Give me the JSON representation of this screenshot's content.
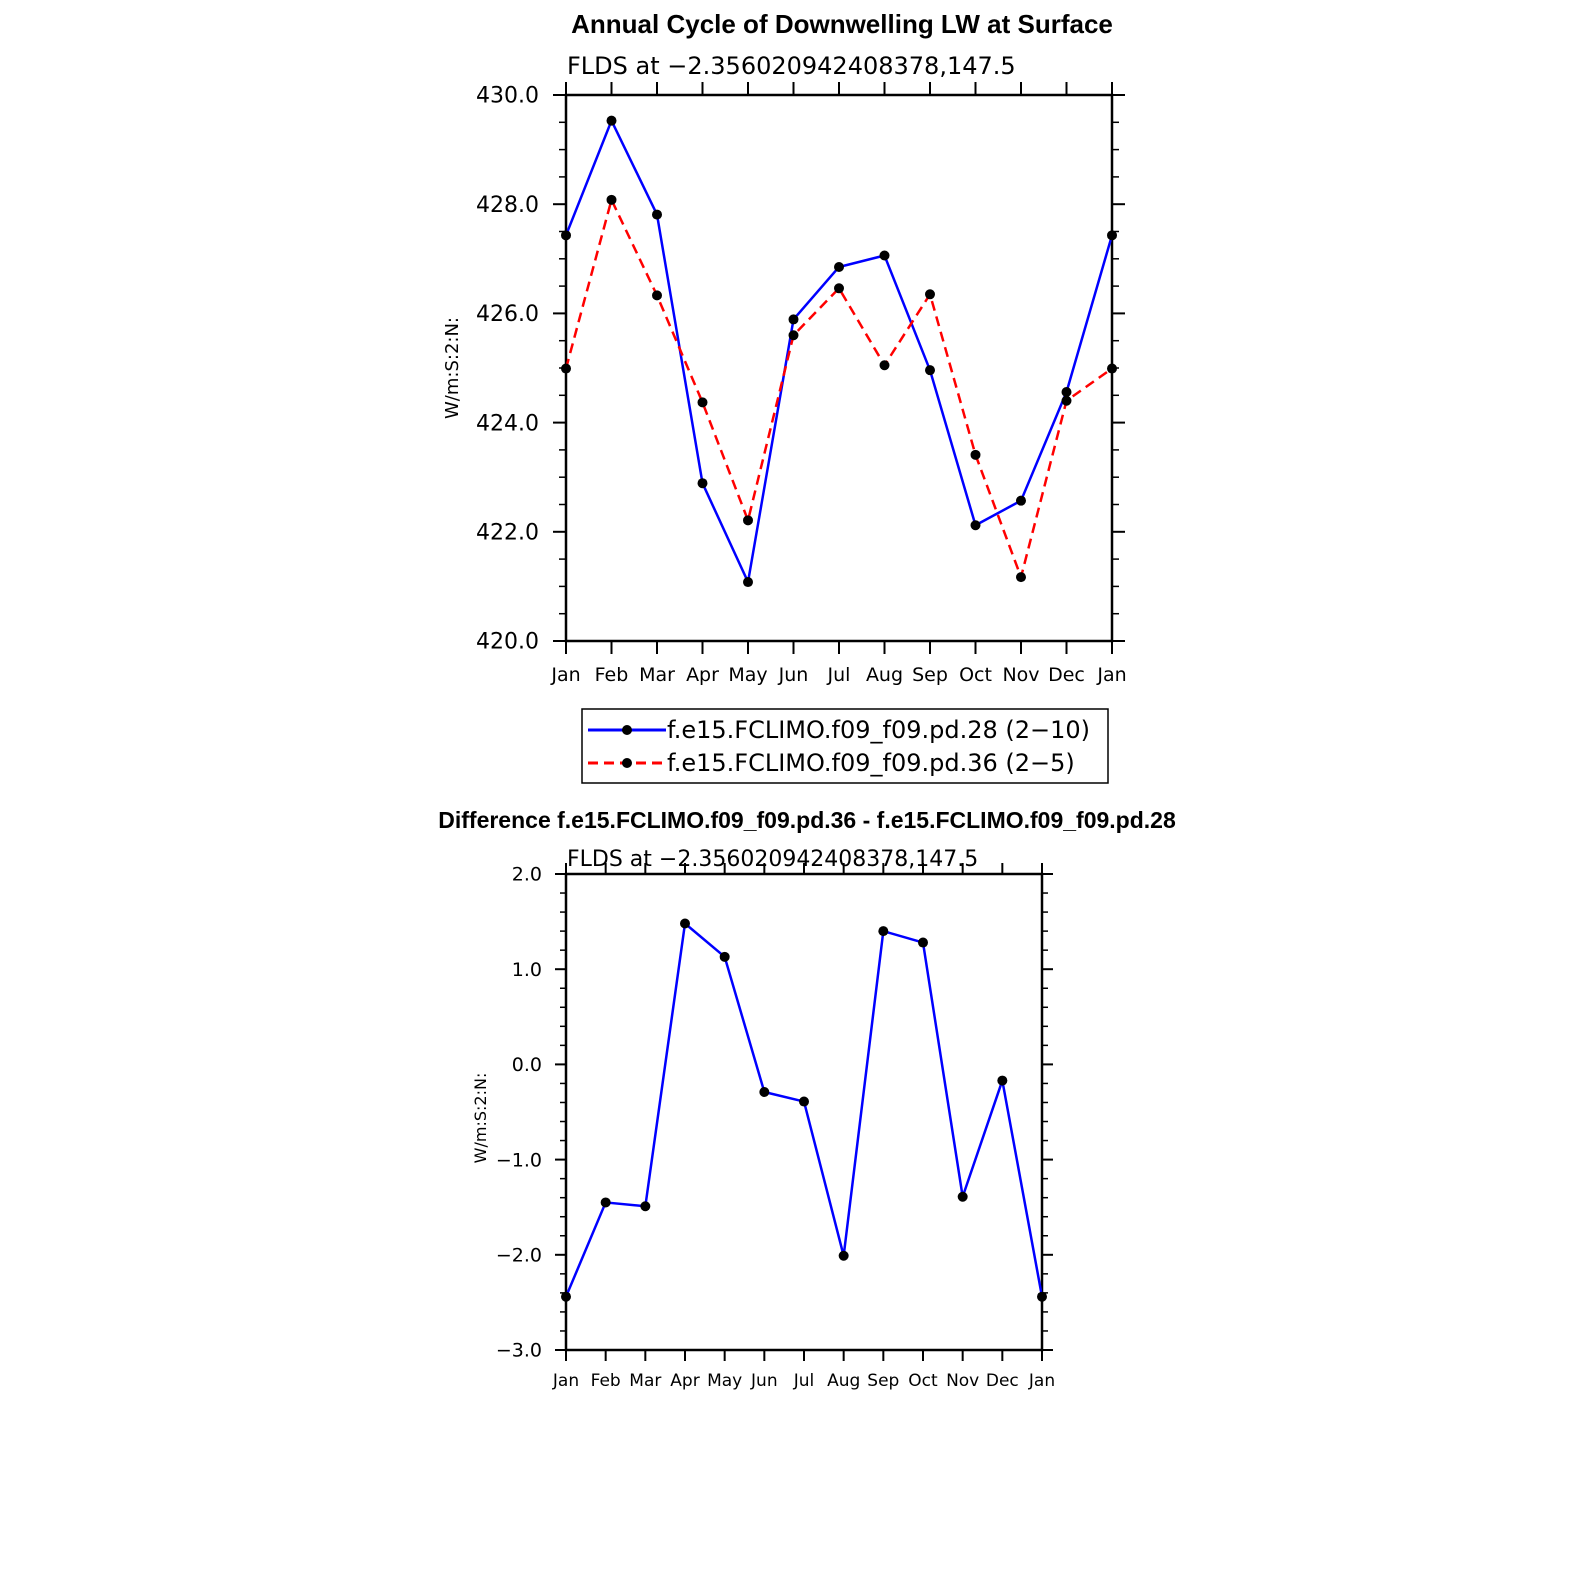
{
  "chart_data": [
    {
      "type": "line",
      "title": "Annual Cycle of Downwelling LW at Surface",
      "subtitle": "FLDS at −2.356020942408378,147.5",
      "ylabel": "W/m:S:2:N:",
      "ylim": [
        420,
        430
      ],
      "yticks": [
        "420.0",
        "422.0",
        "424.0",
        "426.0",
        "428.0",
        "430.0"
      ],
      "categories": [
        "Jan",
        "Feb",
        "Mar",
        "Apr",
        "May",
        "Jun",
        "Jul",
        "Aug",
        "Sep",
        "Oct",
        "Nov",
        "Dec",
        "Jan"
      ],
      "grid": false,
      "legend_position": "bottom",
      "series": [
        {
          "name": "f.e15.FCLIMO.f09_f09.pd.28 (2−10)",
          "color": "#0000ff",
          "dash": "solid",
          "values": [
            427.43,
            429.53,
            427.81,
            422.89,
            421.08,
            425.89,
            426.85,
            427.06,
            424.96,
            422.12,
            422.57,
            424.56,
            427.43
          ]
        },
        {
          "name": "f.e15.FCLIMO.f09_f09.pd.36 (2−5)",
          "color": "#ff0000",
          "dash": "dashed",
          "values": [
            424.99,
            428.08,
            426.33,
            424.37,
            422.21,
            425.6,
            426.46,
            425.05,
            426.35,
            423.41,
            421.17,
            424.4,
            424.99
          ]
        }
      ]
    },
    {
      "type": "line",
      "title": "Difference f.e15.FCLIMO.f09_f09.pd.36 - f.e15.FCLIMO.f09_f09.pd.28",
      "subtitle": "FLDS at −2.356020942408378,147.5",
      "ylabel": "W/m:S:2:N:",
      "ylim": [
        -3,
        2
      ],
      "yticks": [
        "−3.0",
        "−2.0",
        "−1.0",
        "0.0",
        "1.0",
        "2.0"
      ],
      "categories": [
        "Jan",
        "Feb",
        "Mar",
        "Apr",
        "May",
        "Jun",
        "Jul",
        "Aug",
        "Sep",
        "Oct",
        "Nov",
        "Dec",
        "Jan"
      ],
      "grid": false,
      "series": [
        {
          "color": "#0000ff",
          "dash": "solid",
          "values": [
            -2.44,
            -1.45,
            -1.49,
            1.48,
            1.13,
            -0.29,
            -0.39,
            -2.01,
            1.4,
            1.28,
            -1.39,
            -0.17,
            -2.44
          ]
        }
      ]
    }
  ]
}
